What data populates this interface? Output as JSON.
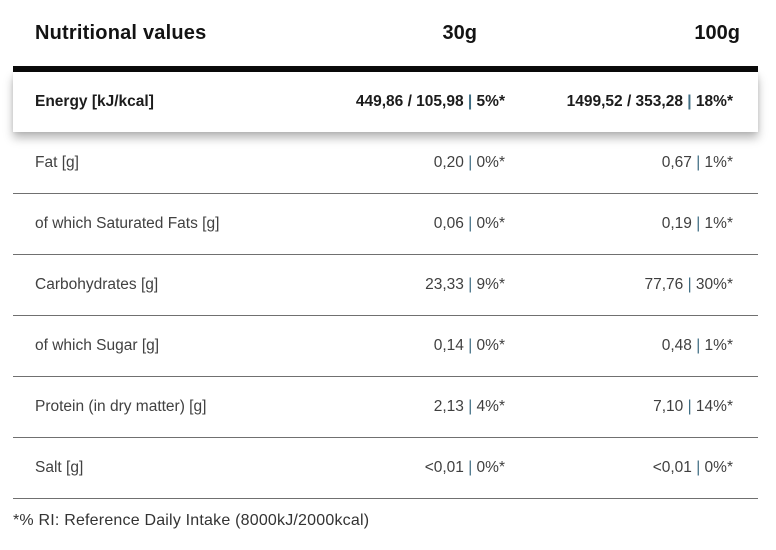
{
  "header": {
    "title": "Nutritional values",
    "col_30g": "30g",
    "col_100g": "100g"
  },
  "rows": [
    {
      "label": "Energy [kJ/kcal]",
      "v30": "449,86 / 105,98 | 5%*",
      "v100": "1499,52 / 353,28 | 18%*",
      "emphasis": true
    },
    {
      "label": "Fat [g]",
      "v30": "0,20 | 0%*",
      "v100": "0,67 | 1%*"
    },
    {
      "label": "of which Saturated Fats [g]",
      "v30": "0,06 | 0%*",
      "v100": "0,19 | 1%*"
    },
    {
      "label": "Carbohydrates [g]",
      "v30": "23,33 | 9%*",
      "v100": "77,76 | 30%*"
    },
    {
      "label": "of which Sugar [g]",
      "v30": "0,14 | 0%*",
      "v100": "0,48 | 1%*"
    },
    {
      "label": "Protein (in dry matter) [g]",
      "v30": "2,13 | 4%*",
      "v100": "7,10 | 14%*"
    },
    {
      "label": "Salt [g]",
      "v30": "<0,01 | 0%*",
      "v100": "<0,01 | 0%*"
    }
  ],
  "footnote": "*% RI: Reference Daily Intake (8000kJ/2000kcal)",
  "colors": {
    "thick_rule": "#0b0b0b",
    "divider": "#707070",
    "pipe_accent": "#406e84",
    "heading_text": "#131313",
    "row_text": "#414141"
  }
}
